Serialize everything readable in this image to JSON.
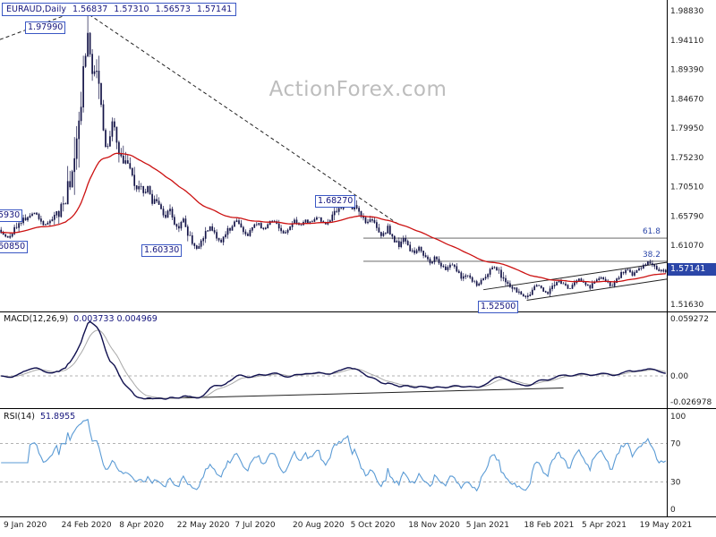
{
  "header": {
    "symbol": "EURAUD,Daily",
    "open": "1.56837",
    "high": "1.57310",
    "low": "1.56573",
    "close": "1.57141"
  },
  "watermark": "ActionForex.com",
  "colors": {
    "candle": "#131347",
    "ma_red": "#cc1111",
    "macd_line": "#10104f",
    "signal_line": "#a8a8a8",
    "rsi_line": "#5b9bd5",
    "accent_blue": "#2b46a8",
    "label_text": "#15157d",
    "grid": "#999999",
    "trend": "#222222",
    "watermark": "#bdbdbd"
  },
  "main_pane": {
    "y_labels": [
      {
        "text": "1.98830",
        "price": 1.9883
      },
      {
        "text": "1.94110",
        "price": 1.9411
      },
      {
        "text": "1.89390",
        "price": 1.8939
      },
      {
        "text": "1.84670",
        "price": 1.8467
      },
      {
        "text": "1.79950",
        "price": 1.7995
      },
      {
        "text": "1.75230",
        "price": 1.7523
      },
      {
        "text": "1.70510",
        "price": 1.7051
      },
      {
        "text": "1.65790",
        "price": 1.6579
      },
      {
        "text": "1.61070",
        "price": 1.6107
      },
      {
        "text": "1.51630",
        "price": 1.5163
      }
    ],
    "current_tag": "1.57141",
    "fib": [
      {
        "label": "61.8"
      },
      {
        "label": "38.2"
      }
    ],
    "annotations": {
      "covid_high": "1.97990",
      "sep_high": "1.68270",
      "jun_low": "1.60330",
      "feb_low": "1.52500",
      "left_upper": "5930",
      "left_lower": "60850"
    }
  },
  "macd_pane": {
    "title": "MACD(12,26,9)",
    "values": "0.003733 0.004969",
    "y_labels": [
      {
        "text": "0.059272",
        "value": 0.059272
      },
      {
        "text": "0.00",
        "value": 0
      },
      {
        "text": "-0.026978",
        "value": -0.026978
      }
    ]
  },
  "rsi_pane": {
    "title": "RSI(14)",
    "values": "51.8955",
    "y_labels": [
      {
        "text": "100",
        "value": 100
      },
      {
        "text": "70",
        "value": 70
      },
      {
        "text": "30",
        "value": 30
      },
      {
        "text": "0",
        "value": 0
      }
    ]
  },
  "x_axis": {
    "labels": [
      "9 Jan 2020",
      "24 Feb 2020",
      "8 Apr 2020",
      "22 May 2020",
      "7 Jul 2020",
      "20 Aug 2020",
      "5 Oct 2020",
      "18 Nov 2020",
      "5 Jan 2021",
      "18 Feb 2021",
      "5 Apr 2021",
      "19 May 2021"
    ]
  },
  "chart_data": {
    "type": "candlestick",
    "symbol": "EURAUD",
    "timeframe": "Daily",
    "x_range": [
      "Jan 2020",
      "May 2021"
    ],
    "price_axis": {
      "min": 1.5074,
      "max": 1.997
    },
    "ohlc_current": {
      "open": 1.56837,
      "high": 1.5731,
      "low": 1.56573,
      "close": 1.57141
    },
    "key_points": [
      {
        "x": 0.131,
        "type": "high",
        "price": 1.9799
      },
      {
        "x": 0.294,
        "type": "low",
        "price": 1.6033
      },
      {
        "x": 0.521,
        "type": "high",
        "price": 1.6827
      },
      {
        "x": 0.79,
        "type": "low",
        "price": 1.525
      }
    ],
    "close_path": [
      [
        0.0,
        1.632
      ],
      [
        0.012,
        1.621
      ],
      [
        0.025,
        1.644
      ],
      [
        0.038,
        1.656
      ],
      [
        0.052,
        1.663
      ],
      [
        0.065,
        1.642
      ],
      [
        0.078,
        1.652
      ],
      [
        0.09,
        1.668
      ],
      [
        0.1,
        1.696
      ],
      [
        0.108,
        1.742
      ],
      [
        0.115,
        1.802
      ],
      [
        0.122,
        1.866
      ],
      [
        0.127,
        1.912
      ],
      [
        0.131,
        1.952
      ],
      [
        0.135,
        1.902
      ],
      [
        0.139,
        1.868
      ],
      [
        0.143,
        1.903
      ],
      [
        0.147,
        1.872
      ],
      [
        0.151,
        1.828
      ],
      [
        0.155,
        1.788
      ],
      [
        0.159,
        1.762
      ],
      [
        0.163,
        1.786
      ],
      [
        0.168,
        1.812
      ],
      [
        0.173,
        1.786
      ],
      [
        0.179,
        1.758
      ],
      [
        0.185,
        1.736
      ],
      [
        0.191,
        1.752
      ],
      [
        0.197,
        1.724
      ],
      [
        0.203,
        1.702
      ],
      [
        0.209,
        1.714
      ],
      [
        0.215,
        1.69
      ],
      [
        0.221,
        1.704
      ],
      [
        0.227,
        1.68
      ],
      [
        0.233,
        1.693
      ],
      [
        0.239,
        1.672
      ],
      [
        0.246,
        1.656
      ],
      [
        0.253,
        1.671
      ],
      [
        0.26,
        1.649
      ],
      [
        0.267,
        1.636
      ],
      [
        0.274,
        1.651
      ],
      [
        0.281,
        1.633
      ],
      [
        0.288,
        1.616
      ],
      [
        0.294,
        1.604
      ],
      [
        0.301,
        1.619
      ],
      [
        0.308,
        1.634
      ],
      [
        0.315,
        1.641
      ],
      [
        0.322,
        1.628
      ],
      [
        0.33,
        1.616
      ],
      [
        0.338,
        1.629
      ],
      [
        0.346,
        1.643
      ],
      [
        0.354,
        1.652
      ],
      [
        0.362,
        1.638
      ],
      [
        0.37,
        1.626
      ],
      [
        0.378,
        1.639
      ],
      [
        0.386,
        1.649
      ],
      [
        0.394,
        1.636
      ],
      [
        0.402,
        1.646
      ],
      [
        0.41,
        1.653
      ],
      [
        0.418,
        1.639
      ],
      [
        0.426,
        1.629
      ],
      [
        0.434,
        1.641
      ],
      [
        0.442,
        1.651
      ],
      [
        0.45,
        1.643
      ],
      [
        0.458,
        1.654
      ],
      [
        0.466,
        1.646
      ],
      [
        0.474,
        1.658
      ],
      [
        0.482,
        1.651
      ],
      [
        0.49,
        1.644
      ],
      [
        0.498,
        1.656
      ],
      [
        0.506,
        1.666
      ],
      [
        0.514,
        1.676
      ],
      [
        0.521,
        1.681
      ],
      [
        0.528,
        1.669
      ],
      [
        0.535,
        1.676
      ],
      [
        0.542,
        1.661
      ],
      [
        0.55,
        1.646
      ],
      [
        0.558,
        1.656
      ],
      [
        0.566,
        1.639
      ],
      [
        0.574,
        1.626
      ],
      [
        0.582,
        1.639
      ],
      [
        0.59,
        1.623
      ],
      [
        0.598,
        1.611
      ],
      [
        0.606,
        1.621
      ],
      [
        0.614,
        1.606
      ],
      [
        0.622,
        1.596
      ],
      [
        0.63,
        1.608
      ],
      [
        0.638,
        1.593
      ],
      [
        0.646,
        1.583
      ],
      [
        0.654,
        1.593
      ],
      [
        0.662,
        1.579
      ],
      [
        0.67,
        1.571
      ],
      [
        0.678,
        1.581
      ],
      [
        0.686,
        1.569
      ],
      [
        0.694,
        1.556
      ],
      [
        0.702,
        1.566
      ],
      [
        0.71,
        1.553
      ],
      [
        0.718,
        1.546
      ],
      [
        0.726,
        1.559
      ],
      [
        0.734,
        1.569
      ],
      [
        0.742,
        1.578
      ],
      [
        0.75,
        1.566
      ],
      [
        0.758,
        1.553
      ],
      [
        0.766,
        1.546
      ],
      [
        0.774,
        1.539
      ],
      [
        0.782,
        1.531
      ],
      [
        0.79,
        1.526
      ],
      [
        0.798,
        1.538
      ],
      [
        0.806,
        1.549
      ],
      [
        0.814,
        1.541
      ],
      [
        0.822,
        1.533
      ],
      [
        0.83,
        1.546
      ],
      [
        0.838,
        1.556
      ],
      [
        0.846,
        1.549
      ],
      [
        0.854,
        1.541
      ],
      [
        0.862,
        1.551
      ],
      [
        0.87,
        1.559
      ],
      [
        0.878,
        1.549
      ],
      [
        0.886,
        1.543
      ],
      [
        0.894,
        1.553
      ],
      [
        0.902,
        1.561
      ],
      [
        0.91,
        1.553
      ],
      [
        0.918,
        1.546
      ],
      [
        0.926,
        1.556
      ],
      [
        0.934,
        1.566
      ],
      [
        0.942,
        1.573
      ],
      [
        0.95,
        1.563
      ],
      [
        0.958,
        1.571
      ],
      [
        0.966,
        1.579
      ],
      [
        0.974,
        1.585
      ],
      [
        0.982,
        1.576
      ],
      [
        0.99,
        1.569
      ],
      [
        1.0,
        1.5714
      ]
    ],
    "fib_levels": [
      {
        "label": "61.8",
        "price": 1.6225,
        "x_start": 0.545
      },
      {
        "label": "38.2",
        "price": 1.5852,
        "x_start": 0.545
      }
    ],
    "trendlines": [
      {
        "style": "dashed",
        "x1": 0.0,
        "p1": 1.942,
        "x2": 0.118,
        "p2": 1.989
      },
      {
        "style": "dashed",
        "x1": 0.134,
        "p1": 1.982,
        "x2": 0.6,
        "p2": 1.643
      }
    ],
    "channel": [
      {
        "x1": 0.725,
        "p1": 1.5395,
        "x2": 1.0,
        "p2": 1.5835
      },
      {
        "x1": 0.79,
        "p1": 1.5225,
        "x2": 1.0,
        "p2": 1.5565
      }
    ],
    "macd_trendline": {
      "x1": 0.215,
      "v1": -0.0255,
      "x2": 0.845,
      "v2": -0.0125
    },
    "indicators": {
      "macd": {
        "params": [
          12,
          26,
          9
        ],
        "current": [
          0.003733,
          0.004969
        ]
      },
      "rsi": {
        "period": 14,
        "current": 51.8955
      },
      "ma": {
        "type": "moving-average",
        "color": "red"
      }
    }
  }
}
